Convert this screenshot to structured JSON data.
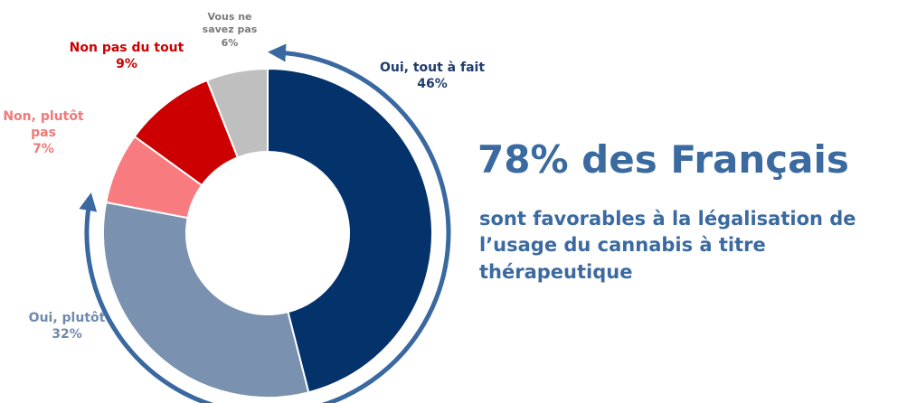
{
  "chart_data": {
    "type": "donut",
    "title": "78% des Français",
    "subtitle": "sont favorables à la légalisation de l’usage du cannabis à titre thérapeutique",
    "categories": [
      "Oui, tout à fait",
      "Oui, plutôt",
      "Non, plutôt pas",
      "Non pas du tout",
      "Vous ne savez pas"
    ],
    "values": [
      46,
      32,
      7,
      9,
      6
    ],
    "value_labels": [
      "46%",
      "32%",
      "7%",
      "9%",
      "6%"
    ],
    "colors": [
      "#03336a",
      "#7a91b0",
      "#f77b7f",
      "#cc0000",
      "#bfbfbf"
    ]
  }
}
